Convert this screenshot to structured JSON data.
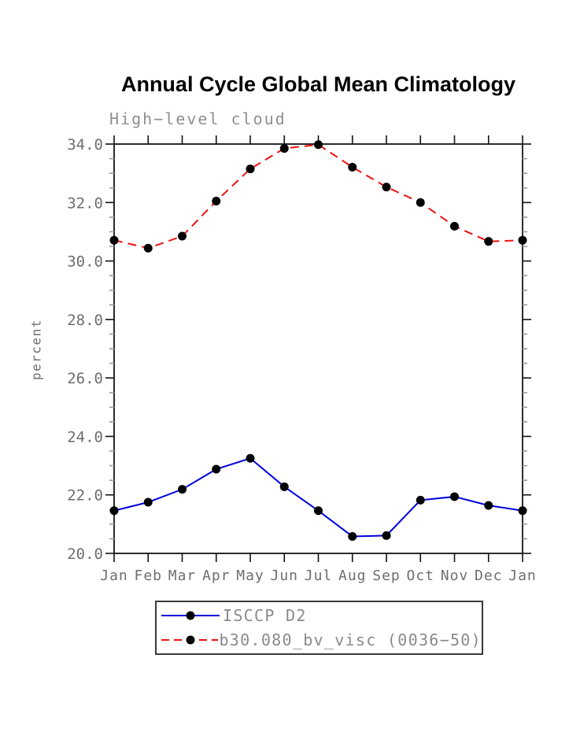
{
  "chart_data": {
    "type": "line",
    "title": "Annual Cycle Global Mean Climatology",
    "subtitle": "High−level cloud",
    "xlabel": "",
    "ylabel": "percent",
    "categories": [
      "Jan",
      "Feb",
      "Mar",
      "Apr",
      "May",
      "Jun",
      "Jul",
      "Aug",
      "Sep",
      "Oct",
      "Nov",
      "Dec",
      "Jan"
    ],
    "ylim": [
      20.0,
      34.0
    ],
    "ytick_major_interval": 2.0,
    "ytick_minor_interval": 0.5,
    "ytick_labels": [
      "20.0",
      "22.0",
      "24.0",
      "26.0",
      "28.0",
      "30.0",
      "32.0",
      "34.0"
    ],
    "grid": false,
    "legend_position": "bottom-outside-boxed",
    "marker": "filled-circle",
    "series": [
      {
        "name": "ISCCP D2",
        "color": "#0000dd",
        "line_style": "solid",
        "marker": "filled-circle",
        "marker_color": "#000000",
        "values": [
          21.46,
          21.75,
          22.19,
          22.88,
          23.25,
          22.28,
          21.46,
          20.58,
          20.61,
          21.82,
          21.94,
          21.64,
          21.46
        ]
      },
      {
        "name": "b30.080_bv_visc (0036−50)",
        "color": "#ee1111",
        "line_style": "dashed",
        "marker": "filled-circle",
        "marker_color": "#000000",
        "values": [
          30.71,
          30.44,
          30.85,
          32.05,
          33.15,
          33.85,
          33.98,
          33.21,
          32.53,
          32.0,
          31.19,
          30.67,
          30.71
        ]
      }
    ]
  }
}
